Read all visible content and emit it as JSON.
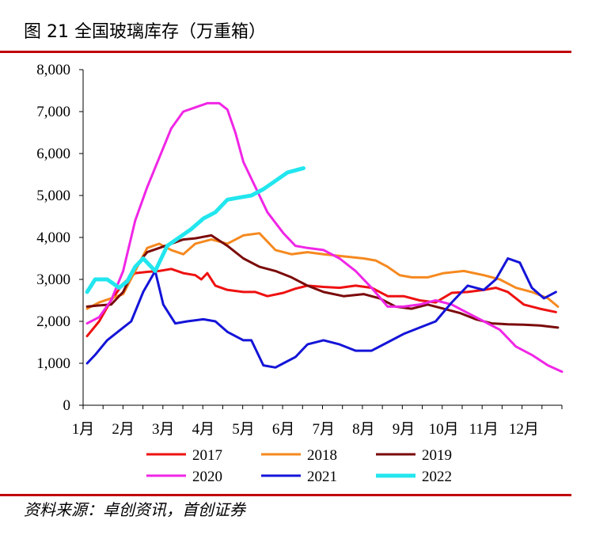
{
  "figure": {
    "title": "图 21  全国玻璃库存（万重箱）",
    "source": "资料来源：卓创资讯，首创证券"
  },
  "colors": {
    "rule": "#c0000a",
    "s2017": "#ee1111",
    "s2018": "#f5891f",
    "s2019": "#7a0a0a",
    "s2020": "#f026e6",
    "s2021": "#1414d8",
    "s2022": "#22e6ee"
  },
  "chart_data": {
    "type": "line",
    "title": "全国玻璃库存（万重箱）",
    "xlabel": "",
    "ylabel": "",
    "xlim": [
      1,
      12.95
    ],
    "ylim": [
      0,
      8000
    ],
    "x_ticks": [
      1,
      2,
      3,
      4,
      5,
      6,
      7,
      8,
      9,
      10,
      11,
      12
    ],
    "x_tick_labels": [
      "1月",
      "2月",
      "3月",
      "4月",
      "5月",
      "6月",
      "7月",
      "8月",
      "9月",
      "10月",
      "11月",
      "12月"
    ],
    "y_ticks": [
      0,
      1000,
      2000,
      3000,
      4000,
      5000,
      6000,
      7000,
      8000
    ],
    "y_tick_labels": [
      "0",
      "1,000",
      "2,000",
      "3,000",
      "4,000",
      "5,000",
      "6,000",
      "7,000",
      "8,000"
    ],
    "legend_position": "bottom",
    "series": [
      {
        "name": "2017",
        "color_key": "s2017",
        "x": [
          1.1,
          1.4,
          1.7,
          2.0,
          2.3,
          2.6,
          2.9,
          3.2,
          3.5,
          3.8,
          3.95,
          4.1,
          4.3,
          4.6,
          5.0,
          5.3,
          5.6,
          6.0,
          6.3,
          6.6,
          7.0,
          7.4,
          7.8,
          8.2,
          8.6,
          9.0,
          9.4,
          9.8,
          10.2,
          10.6,
          11.0,
          11.3,
          11.6,
          12.0,
          12.4,
          12.8
        ],
        "y": [
          1650,
          2000,
          2500,
          2900,
          3150,
          3180,
          3200,
          3250,
          3150,
          3100,
          3000,
          3150,
          2850,
          2750,
          2700,
          2700,
          2600,
          2680,
          2780,
          2850,
          2820,
          2800,
          2850,
          2800,
          2600,
          2600,
          2500,
          2450,
          2680,
          2700,
          2750,
          2800,
          2700,
          2400,
          2300,
          2220
        ]
      },
      {
        "name": "2018",
        "color_key": "s2018",
        "x": [
          1.1,
          1.4,
          1.7,
          2.0,
          2.3,
          2.6,
          2.9,
          3.2,
          3.5,
          3.8,
          4.2,
          4.6,
          5.0,
          5.4,
          5.8,
          6.2,
          6.6,
          7.0,
          7.5,
          8.0,
          8.3,
          8.6,
          8.9,
          9.2,
          9.6,
          10.0,
          10.5,
          11.0,
          11.4,
          11.8,
          12.2,
          12.6,
          12.85
        ],
        "y": [
          2300,
          2450,
          2550,
          2650,
          3200,
          3750,
          3850,
          3700,
          3600,
          3850,
          3950,
          3850,
          4050,
          4100,
          3700,
          3600,
          3650,
          3600,
          3550,
          3500,
          3450,
          3300,
          3100,
          3050,
          3050,
          3150,
          3200,
          3100,
          3000,
          2800,
          2700,
          2550,
          2350
        ]
      },
      {
        "name": "2019",
        "color_key": "s2019",
        "x": [
          1.1,
          1.4,
          1.7,
          2.0,
          2.3,
          2.6,
          2.9,
          3.2,
          3.5,
          3.8,
          4.2,
          4.6,
          5.0,
          5.4,
          5.8,
          6.2,
          6.6,
          7.0,
          7.5,
          8.0,
          8.4,
          8.8,
          9.2,
          9.6,
          10.0,
          10.4,
          10.8,
          11.2,
          11.6,
          12.0,
          12.4,
          12.85
        ],
        "y": [
          2350,
          2380,
          2400,
          2700,
          3300,
          3650,
          3750,
          3850,
          3950,
          3980,
          4050,
          3800,
          3500,
          3300,
          3200,
          3050,
          2850,
          2700,
          2600,
          2650,
          2550,
          2350,
          2300,
          2400,
          2300,
          2200,
          2050,
          1950,
          1930,
          1920,
          1900,
          1850
        ]
      },
      {
        "name": "2020",
        "color_key": "s2020",
        "x": [
          1.1,
          1.4,
          1.7,
          2.0,
          2.3,
          2.6,
          2.9,
          3.2,
          3.5,
          3.8,
          4.1,
          4.4,
          4.6,
          4.8,
          5.0,
          5.3,
          5.6,
          6.0,
          6.3,
          6.6,
          7.0,
          7.4,
          7.8,
          8.2,
          8.6,
          9.0,
          9.4,
          9.8,
          10.2,
          10.6,
          11.0,
          11.4,
          11.8,
          12.2,
          12.6,
          12.95
        ],
        "y": [
          1950,
          2100,
          2500,
          3200,
          4400,
          5200,
          5900,
          6600,
          7000,
          7100,
          7200,
          7200,
          7050,
          6500,
          5800,
          5200,
          4600,
          4100,
          3800,
          3750,
          3700,
          3500,
          3200,
          2800,
          2350,
          2350,
          2400,
          2500,
          2400,
          2200,
          2000,
          1800,
          1400,
          1200,
          950,
          800
        ]
      },
      {
        "name": "2021",
        "color_key": "s2021",
        "x": [
          1.1,
          1.3,
          1.6,
          2.0,
          2.2,
          2.5,
          2.8,
          3.0,
          3.3,
          3.6,
          4.0,
          4.3,
          4.6,
          5.0,
          5.2,
          5.5,
          5.8,
          6.0,
          6.3,
          6.6,
          7.0,
          7.4,
          7.8,
          8.2,
          8.6,
          9.0,
          9.4,
          9.8,
          10.2,
          10.6,
          11.0,
          11.3,
          11.6,
          11.9,
          12.2,
          12.5,
          12.8
        ],
        "y": [
          1000,
          1200,
          1550,
          1850,
          2000,
          2700,
          3200,
          2400,
          1950,
          2000,
          2050,
          2000,
          1750,
          1550,
          1550,
          950,
          900,
          1000,
          1150,
          1450,
          1550,
          1450,
          1300,
          1300,
          1500,
          1700,
          1850,
          2000,
          2450,
          2850,
          2750,
          3000,
          3500,
          3400,
          2800,
          2550,
          2700
        ]
      },
      {
        "name": "2022",
        "color_key": "s2022",
        "x": [
          1.1,
          1.3,
          1.6,
          1.9,
          2.1,
          2.3,
          2.5,
          2.8,
          3.1,
          3.4,
          3.7,
          4.0,
          4.3,
          4.6,
          4.9,
          5.2,
          5.5,
          5.8,
          6.1,
          6.5
        ],
        "y": [
          2700,
          3000,
          3000,
          2800,
          2950,
          3300,
          3500,
          3200,
          3800,
          4000,
          4200,
          4450,
          4600,
          4900,
          4950,
          5000,
          5150,
          5350,
          5550,
          5650
        ]
      }
    ]
  }
}
